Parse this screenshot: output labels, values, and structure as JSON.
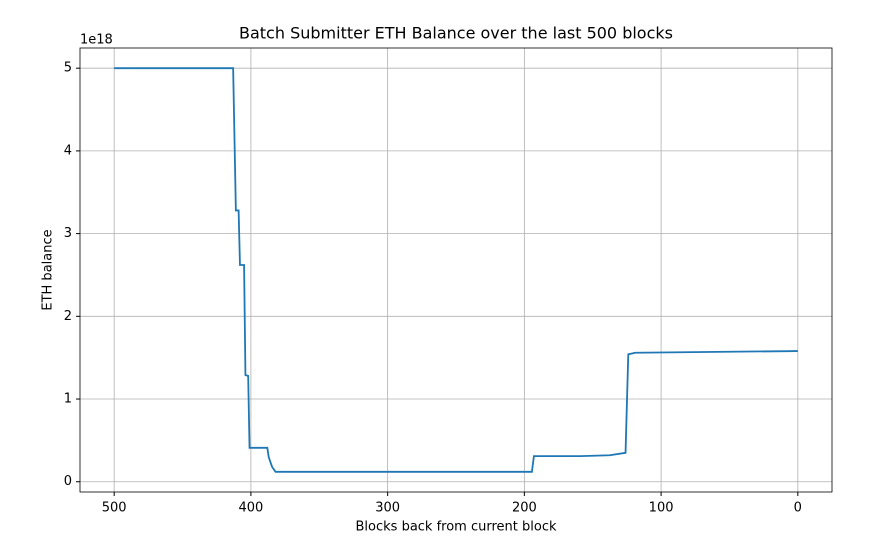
{
  "chart_data": {
    "type": "line",
    "title": "Batch Submitter ETH Balance over the last 500 blocks",
    "xlabel": "Blocks back from current block",
    "ylabel": "ETH balance",
    "y_offset_label": "1e18",
    "x": [
      500,
      413,
      411,
      409,
      408,
      405,
      404,
      402,
      401,
      388,
      387,
      386,
      384.5,
      382,
      194.5,
      193,
      159,
      137.5,
      126,
      124,
      119,
      0
    ],
    "values": [
      5.0,
      5.0,
      3.28,
      3.28,
      2.62,
      2.62,
      1.29,
      1.28,
      0.41,
      0.41,
      0.3,
      0.25,
      0.18,
      0.12,
      0.12,
      0.31,
      0.31,
      0.32,
      0.35,
      1.54,
      1.56,
      1.58
    ],
    "color": "#1f77b4",
    "xlim": [
      525,
      -25
    ],
    "xticks": [
      500,
      400,
      300,
      200,
      100,
      0
    ],
    "ylim": [
      -0.124,
      5.244
    ],
    "yticks": [
      0,
      1,
      2,
      3,
      4,
      5
    ],
    "grid": true
  }
}
